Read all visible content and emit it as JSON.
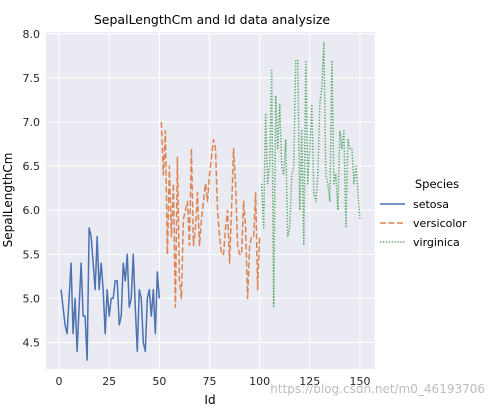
{
  "chart_data": {
    "type": "line",
    "title": "SepalLengthCm and Id data analysize",
    "xlabel": "Id",
    "ylabel": "SepalLengthCm",
    "xlim": [
      -6.5,
      157.5
    ],
    "ylim": [
      4.2,
      8.02
    ],
    "xticks": [
      0,
      25,
      50,
      75,
      100,
      125,
      150
    ],
    "yticks": [
      4.5,
      5.0,
      5.5,
      6.0,
      6.5,
      7.0,
      7.5,
      8.0
    ],
    "grid": true,
    "background": "#EAEAF2",
    "legend": {
      "title": "Species",
      "position": "right"
    },
    "series": [
      {
        "name": "setosa",
        "color": "#4C72B0",
        "dash": "solid",
        "x_start": 1,
        "values": [
          5.1,
          4.9,
          4.7,
          4.6,
          5.0,
          5.4,
          4.6,
          5.0,
          4.4,
          4.9,
          5.4,
          4.8,
          4.8,
          4.3,
          5.8,
          5.7,
          5.4,
          5.1,
          5.7,
          5.1,
          5.4,
          5.1,
          4.6,
          5.1,
          4.8,
          5.0,
          5.0,
          5.2,
          5.2,
          4.7,
          4.8,
          5.4,
          5.2,
          5.5,
          4.9,
          5.0,
          5.5,
          4.9,
          4.4,
          5.1,
          5.0,
          4.5,
          4.4,
          5.0,
          5.1,
          4.8,
          5.1,
          4.6,
          5.3,
          5.0
        ]
      },
      {
        "name": "versicolor",
        "color": "#DD8452",
        "dash": "dashed",
        "x_start": 51,
        "values": [
          7.0,
          6.4,
          6.9,
          5.5,
          6.5,
          5.7,
          6.3,
          4.9,
          6.6,
          5.2,
          5.0,
          5.9,
          6.0,
          6.1,
          5.6,
          6.7,
          5.6,
          5.8,
          6.2,
          5.6,
          5.9,
          6.1,
          6.3,
          6.1,
          6.4,
          6.6,
          6.8,
          6.7,
          6.0,
          5.7,
          5.5,
          5.5,
          5.8,
          6.0,
          5.4,
          6.0,
          6.7,
          6.3,
          5.6,
          5.5,
          5.5,
          6.1,
          5.8,
          5.0,
          5.6,
          5.7,
          5.7,
          6.2,
          5.1,
          5.7
        ]
      },
      {
        "name": "virginica",
        "color": "#55A868",
        "dash": "dotted",
        "x_start": 101,
        "values": [
          6.3,
          5.8,
          7.1,
          6.3,
          6.5,
          7.6,
          4.9,
          7.3,
          6.7,
          7.2,
          6.5,
          6.4,
          6.8,
          5.7,
          5.8,
          6.4,
          6.5,
          7.7,
          7.7,
          6.0,
          6.9,
          5.6,
          7.7,
          6.3,
          6.7,
          7.2,
          6.2,
          6.1,
          6.4,
          7.2,
          7.4,
          7.9,
          6.4,
          6.3,
          6.1,
          7.7,
          6.3,
          6.4,
          6.0,
          6.9,
          6.7,
          6.9,
          5.8,
          6.8,
          6.7,
          6.7,
          6.3,
          6.5,
          6.2,
          5.9
        ]
      }
    ]
  },
  "watermark": "https://blog.csdn.net/m0_46193706"
}
